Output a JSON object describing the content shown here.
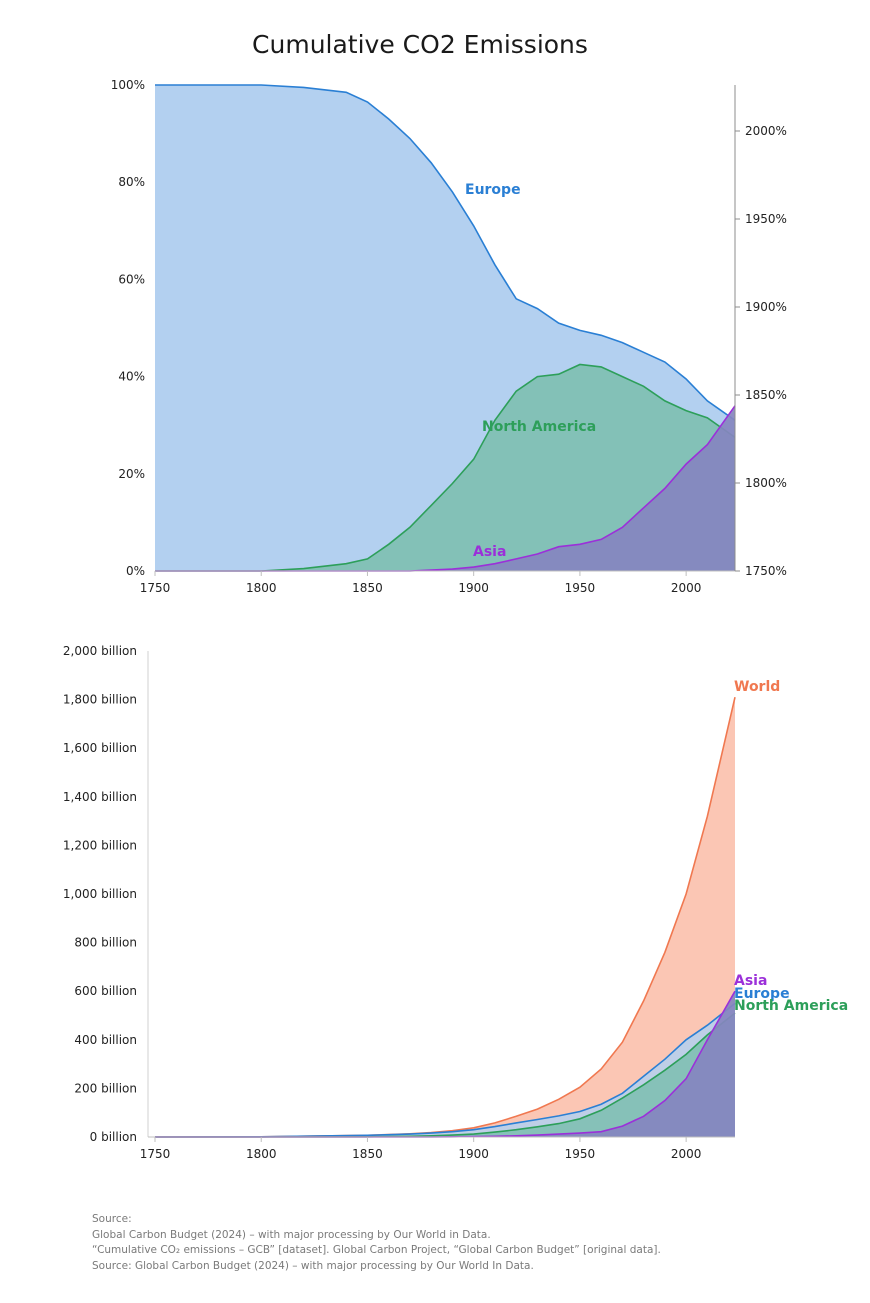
{
  "title": "Cumulative CO2 Emissions",
  "colors": {
    "europe": "#2a7fd4",
    "europe_fill": "#b3d0f0",
    "north_america": "#2d9f5a",
    "north_america_fill": "#7fbfb2",
    "asia": "#9b30d9",
    "asia_fill": "#8686bf",
    "world": "#f07850",
    "world_fill": "#fbc6b4"
  },
  "chart_data": [
    {
      "type": "area",
      "x": [
        1750,
        1800,
        1820,
        1840,
        1850,
        1860,
        1870,
        1880,
        1890,
        1900,
        1910,
        1920,
        1930,
        1940,
        1950,
        1960,
        1970,
        1980,
        1990,
        2000,
        2010,
        2023
      ],
      "series": [
        {
          "name": "Europe",
          "values": [
            100,
            100,
            99.5,
            98.5,
            96.5,
            93,
            89,
            84,
            78,
            71,
            63,
            56,
            54,
            51,
            49.5,
            48.5,
            47,
            45,
            43,
            39.5,
            35,
            31
          ]
        },
        {
          "name": "North America",
          "values": [
            0,
            0,
            0.5,
            1.5,
            2.5,
            5.5,
            9,
            13.5,
            18,
            23,
            31,
            37,
            40,
            40.5,
            42.5,
            42,
            40,
            38,
            35,
            33,
            31.5,
            27.5
          ]
        },
        {
          "name": "Asia",
          "values": [
            0,
            0,
            0,
            0,
            0,
            0,
            0,
            0.2,
            0.4,
            0.8,
            1.5,
            2.5,
            3.5,
            5,
            5.5,
            6.5,
            9,
            13,
            17,
            22,
            26,
            34
          ]
        }
      ],
      "ylim": [
        0,
        100
      ],
      "xlim": [
        1750,
        2023
      ],
      "y_ticks": [
        "0%",
        "20%",
        "40%",
        "60%",
        "80%",
        "100%"
      ],
      "y2_ticks": [
        "1750%",
        "1800%",
        "1850%",
        "1900%",
        "1950%",
        "2000%"
      ],
      "x_ticks": [
        "1750",
        "1800",
        "1850",
        "1900",
        "1950",
        "2000"
      ]
    },
    {
      "type": "area",
      "x": [
        1750,
        1800,
        1850,
        1870,
        1880,
        1890,
        1900,
        1910,
        1920,
        1930,
        1940,
        1950,
        1960,
        1970,
        1980,
        1990,
        2000,
        2010,
        2023
      ],
      "series": [
        {
          "name": "World",
          "values": [
            0,
            1,
            7,
            13,
            18,
            26,
            38,
            58,
            85,
            115,
            155,
            205,
            280,
            390,
            560,
            760,
            1000,
            1320,
            1810
          ]
        },
        {
          "name": "Europe",
          "values": [
            0,
            1,
            7,
            12,
            16,
            22,
            30,
            43,
            58,
            72,
            87,
            105,
            135,
            180,
            250,
            320,
            400,
            460,
            550
          ]
        },
        {
          "name": "North America",
          "values": [
            0,
            0,
            1,
            3,
            5,
            8,
            12,
            20,
            30,
            42,
            55,
            75,
            110,
            160,
            215,
            275,
            340,
            420,
            510
          ]
        },
        {
          "name": "Asia",
          "values": [
            0,
            0,
            0,
            0,
            0,
            1,
            2,
            3,
            5,
            8,
            12,
            16,
            22,
            45,
            85,
            150,
            240,
            400,
            600
          ]
        }
      ],
      "ylim": [
        0,
        2000
      ],
      "xlim": [
        1750,
        2023
      ],
      "y_ticks": [
        "0 billion",
        "200 billion",
        "400 billion",
        "600 billion",
        "800 billion",
        "1,000 billion",
        "1,200 billion",
        "1,400 billion",
        "1,600 billion",
        "1,800 billion",
        "2,000 billion"
      ],
      "x_ticks": [
        "1750",
        "1800",
        "1850",
        "1900",
        "1950",
        "2000"
      ]
    }
  ],
  "labels": {
    "chart1": {
      "europe": "Europe",
      "north_america": "North America",
      "asia": "Asia"
    },
    "chart2": {
      "world": "World",
      "asia": "Asia",
      "europe": "Europe",
      "north_america": "North America"
    }
  },
  "source": {
    "line1": "Source:",
    "line2": "Global Carbon Budget (2024) – with major processing by Our World in Data.",
    "line3": "“Cumulative CO₂ emissions – GCB” [dataset]. Global Carbon Project, “Global Carbon Budget” [original data].",
    "line4": "Source: Global Carbon Budget (2024) – with major processing by Our World In Data."
  }
}
